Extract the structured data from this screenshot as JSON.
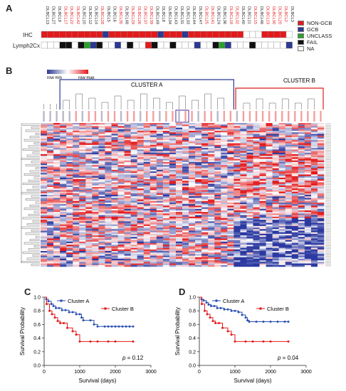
{
  "panels": {
    "a": "A",
    "b": "B",
    "c": "C",
    "d": "D"
  },
  "panel_a": {
    "sample_ids": [
      "DLBCL13",
      "DLBCL27",
      "DLBCL9",
      "DLBCL17",
      "DLBCL22",
      "DLBCL42",
      "DLBCL10",
      "DLBCL12",
      "DLBCL14",
      "DLBCL28",
      "DLBCL5",
      "DLBCL6",
      "DLBCL35",
      "DLBCL48",
      "DLBCL29",
      "DLBCL26",
      "DLBCL37",
      "DLBCL39",
      "DLBCL49",
      "DLBCL8",
      "DLBCL34",
      "DLBCL43",
      "DLBCL31",
      "DLBCL33",
      "DLBCL44",
      "DLBCL47",
      "DLBCL25",
      "DLBCL41",
      "DLBCL24",
      "DLBCL36",
      "DLBCL18",
      "DLBCL32",
      "DLBCL40",
      "DLBCL11",
      "DLBCL15",
      "DLBCL46",
      "DLBCL23",
      "DLBCL30",
      "DLBCL20",
      "DLBCL2",
      "DLBCL3"
    ],
    "sample_colors": [
      "#222222",
      "#222222",
      "#222222",
      "#e31a1c",
      "#e31a1c",
      "#e31a1c",
      "#222222",
      "#222222",
      "#222222",
      "#e31a1c",
      "#222222",
      "#222222",
      "#e31a1c",
      "#222222",
      "#e31a1c",
      "#e31a1c",
      "#e31a1c",
      "#e31a1c",
      "#222222",
      "#222222",
      "#222222",
      "#222222",
      "#222222",
      "#222222",
      "#222222",
      "#222222",
      "#e31a1c",
      "#e31a1c",
      "#222222",
      "#222222",
      "#e31a1c",
      "#e31a1c",
      "#222222",
      "#222222",
      "#e31a1c",
      "#222222",
      "#e31a1c",
      "#e31a1c",
      "#e31a1c",
      "#e31a1c",
      "#222222"
    ],
    "ihc_label": "IHC",
    "lymph_label": "Lymph2Cx",
    "ihc": [
      "N",
      "N",
      "N",
      "N",
      "N",
      "N",
      "N",
      "N",
      "N",
      "N",
      "G",
      "N",
      "N",
      "N",
      "N",
      "N",
      "N",
      "N",
      "N",
      "G",
      "N",
      "N",
      "N",
      "G",
      "N",
      "N",
      "N",
      "N",
      "N",
      "N",
      "N",
      "N",
      "N",
      "A",
      "A",
      "A",
      "N",
      "N",
      "N",
      "N",
      "A"
    ],
    "lymph": [
      "A",
      "A",
      "A",
      "F",
      "F",
      "A",
      "F",
      "U",
      "G",
      "F",
      "A",
      "A",
      "G",
      "A",
      "F",
      "A",
      "A",
      "N",
      "F",
      "A",
      "A",
      "F",
      "A",
      "A",
      "A",
      "G",
      "A",
      "A",
      "F",
      "U",
      "G",
      "A",
      "A",
      "A",
      "F",
      "A",
      "A",
      "A",
      "A",
      "A",
      "G"
    ],
    "legend": [
      {
        "label": "NON-GCB",
        "color": "#e31a1c"
      },
      {
        "label": "GCB",
        "color": "#2b3990"
      },
      {
        "label": "UNCLASS",
        "color": "#2ca02c"
      },
      {
        "label": "FAIL",
        "color": "#111111"
      },
      {
        "label": "NA",
        "color": "#ffffff"
      }
    ],
    "category_colors": {
      "N": "#e31a1c",
      "G": "#2b3990",
      "U": "#2ca02c",
      "F": "#111111",
      "A": "#ffffff"
    }
  },
  "panel_b": {
    "scale_min": "row min",
    "scale_max": "row max",
    "cluster_a": "CLUSTER A",
    "cluster_b": "CLUSTER B",
    "cluster_a_color": "#2b3990",
    "cluster_b_color": "#e31a1c",
    "n_columns": 44,
    "n_rows": 92
  },
  "chart_data": [
    {
      "type": "line",
      "panel": "C",
      "xlabel": "Survival (days)",
      "ylabel": "Survival Probability",
      "xlim": [
        0,
        3000
      ],
      "ylim": [
        0,
        1.0
      ],
      "xticks": [
        "0",
        "1000",
        "2000",
        "3000"
      ],
      "yticks": [
        "0.0",
        "0.2",
        "0.4",
        "0.6",
        "0.8",
        "1.0"
      ],
      "annotation_p": "p",
      "annotation_value": "= 0.12",
      "series": [
        {
          "name": "Cluster A",
          "color": "#2b4fb3",
          "x": [
            0,
            60,
            120,
            200,
            260,
            330,
            420,
            500,
            600,
            700,
            800,
            900,
            1000,
            1050,
            1100,
            1300,
            1400,
            1500,
            1700,
            1800,
            1900,
            2000,
            2100,
            2200,
            2300,
            2400,
            2500
          ],
          "y": [
            1.0,
            0.97,
            0.94,
            0.9,
            0.87,
            0.84,
            0.84,
            0.81,
            0.81,
            0.78,
            0.78,
            0.75,
            0.75,
            0.7,
            0.66,
            0.66,
            0.6,
            0.57,
            0.57,
            0.57,
            0.57,
            0.57,
            0.57,
            0.57,
            0.57,
            0.57,
            0.57
          ]
        },
        {
          "name": "Cluster B",
          "color": "#e31a1c",
          "x": [
            0,
            70,
            150,
            220,
            300,
            380,
            450,
            550,
            650,
            800,
            900,
            1000,
            1300,
            1500,
            1800,
            2000,
            2500
          ],
          "y": [
            1.0,
            0.9,
            0.8,
            0.75,
            0.7,
            0.65,
            0.62,
            0.62,
            0.55,
            0.5,
            0.45,
            0.35,
            0.35,
            0.35,
            0.35,
            0.35,
            0.35
          ]
        }
      ]
    },
    {
      "type": "line",
      "panel": "D",
      "xlabel": "Survival (days)",
      "ylabel": "Survival Probability",
      "xlim": [
        0,
        3000
      ],
      "ylim": [
        0,
        1.0
      ],
      "xticks": [
        "0",
        "1000",
        "2000",
        "3000"
      ],
      "yticks": [
        "0.0",
        "0.2",
        "0.4",
        "0.6",
        "0.8",
        "1.0"
      ],
      "annotation_p": "p",
      "annotation_value": "= 0.04",
      "series": [
        {
          "name": "Cluster A",
          "color": "#2b4fb3",
          "x": [
            0,
            60,
            120,
            200,
            260,
            330,
            420,
            500,
            600,
            700,
            800,
            900,
            1000,
            1100,
            1200,
            1300,
            1350,
            1400,
            1600,
            1800,
            2000,
            2200,
            2400,
            2500
          ],
          "y": [
            1.0,
            0.97,
            0.95,
            0.92,
            0.89,
            0.87,
            0.87,
            0.84,
            0.84,
            0.82,
            0.82,
            0.8,
            0.8,
            0.78,
            0.74,
            0.7,
            0.66,
            0.64,
            0.64,
            0.64,
            0.64,
            0.64,
            0.64,
            0.64
          ]
        },
        {
          "name": "Cluster B",
          "color": "#e31a1c",
          "x": [
            0,
            70,
            150,
            220,
            300,
            380,
            450,
            550,
            650,
            800,
            900,
            1000,
            1300,
            1500,
            1800,
            2000,
            2500
          ],
          "y": [
            1.0,
            0.9,
            0.8,
            0.75,
            0.7,
            0.65,
            0.62,
            0.62,
            0.55,
            0.5,
            0.45,
            0.35,
            0.35,
            0.35,
            0.35,
            0.35,
            0.35
          ]
        }
      ]
    }
  ]
}
